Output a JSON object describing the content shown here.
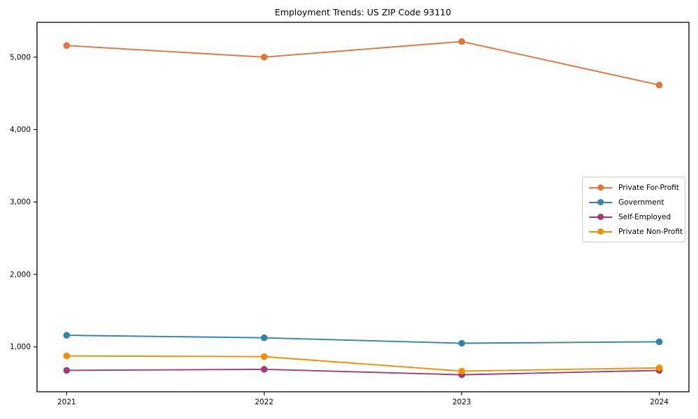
{
  "title": "Employment Trends: US ZIP Code 93110",
  "chart_data": {
    "type": "line",
    "title": "Employment Trends: US ZIP Code 93110",
    "xlabel": "",
    "ylabel": "",
    "x": [
      2021,
      2022,
      2023,
      2024
    ],
    "xtick_labels": [
      "2021",
      "2022",
      "2023",
      "2024"
    ],
    "yticks": [
      1000,
      2000,
      3000,
      4000,
      5000
    ],
    "ytick_labels": [
      "1,000",
      "2,000",
      "3,000",
      "4,000",
      "5,000"
    ],
    "ylim": [
      380,
      5480
    ],
    "grid": false,
    "marker": "circle",
    "legend_position": "center right",
    "series": [
      {
        "name": "Private For-Profit",
        "color": "#E0763C",
        "values": [
          5160,
          5000,
          5215,
          4615
        ]
      },
      {
        "name": "Government",
        "color": "#2E86AB",
        "values": [
          1160,
          1125,
          1050,
          1070
        ]
      },
      {
        "name": "Self-Employed",
        "color": "#A23B72",
        "values": [
          675,
          690,
          615,
          675
        ]
      },
      {
        "name": "Private Non-Profit",
        "color": "#F18F01",
        "values": [
          875,
          865,
          665,
          710
        ]
      }
    ]
  },
  "axes": {
    "spine_color": "#000000",
    "tick_color": "#000000",
    "label_color": "#000000"
  }
}
